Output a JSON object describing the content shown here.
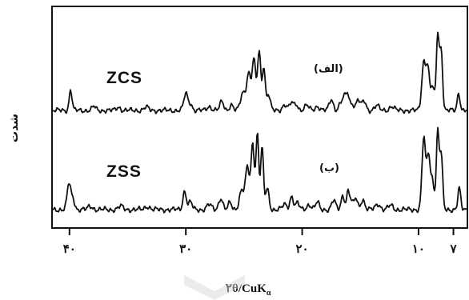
{
  "chart_data": {
    "type": "line",
    "x_reversed": true,
    "xlim": [
      41.5,
      5.8
    ],
    "x_ticks": [
      {
        "value": 40,
        "label": "۴۰"
      },
      {
        "value": 30,
        "label": "۳۰"
      },
      {
        "value": 20,
        "label": "۲۰"
      },
      {
        "value": 10,
        "label": "۱۰"
      },
      {
        "value": 7,
        "label": "۷"
      }
    ],
    "xlabel_main": "۲θ/CuK",
    "xlabel_sub": "α",
    "ylabel": "شدت",
    "series": [
      {
        "name": "ZCS",
        "tag": "(الف)",
        "baseline": 1.0,
        "peaks": [
          [
            39.9,
            2.6,
            0.12
          ],
          [
            37.9,
            0.5,
            0.15
          ],
          [
            35.8,
            0.4,
            0.18
          ],
          [
            33.4,
            0.4,
            0.2
          ],
          [
            30.0,
            2.1,
            0.17
          ],
          [
            29.6,
            0.8,
            0.15
          ],
          [
            28.0,
            0.5,
            0.2
          ],
          [
            26.9,
            1.1,
            0.17
          ],
          [
            26.1,
            0.7,
            0.15
          ],
          [
            25.1,
            2.2,
            0.2
          ],
          [
            24.6,
            4.6,
            0.18
          ],
          [
            24.15,
            6.2,
            0.15
          ],
          [
            23.7,
            7.4,
            0.14
          ],
          [
            23.3,
            5.5,
            0.12
          ],
          [
            22.9,
            2.0,
            0.15
          ],
          [
            21.5,
            0.7,
            0.2
          ],
          [
            20.9,
            1.0,
            0.15
          ],
          [
            20.5,
            0.8,
            0.15
          ],
          [
            19.6,
            0.6,
            0.2
          ],
          [
            18.7,
            0.5,
            0.2
          ],
          [
            17.5,
            1.4,
            0.17
          ],
          [
            16.7,
            0.8,
            0.17
          ],
          [
            16.4,
            1.4,
            0.14
          ],
          [
            16.1,
            2.1,
            0.14
          ],
          [
            15.7,
            0.9,
            0.15
          ],
          [
            15.2,
            1.4,
            0.15
          ],
          [
            14.7,
            1.2,
            0.17
          ],
          [
            13.6,
            0.6,
            0.2
          ],
          [
            12.3,
            0.5,
            0.2
          ],
          [
            9.55,
            6.0,
            0.17
          ],
          [
            9.2,
            5.0,
            0.14
          ],
          [
            8.8,
            3.0,
            0.15
          ],
          [
            8.35,
            9.6,
            0.12
          ],
          [
            8.05,
            7.5,
            0.12
          ],
          [
            6.55,
            2.2,
            0.12
          ]
        ]
      },
      {
        "name": "ZSS",
        "tag": "(ب)",
        "baseline": 1.0,
        "peaks": [
          [
            40.05,
            3.1,
            0.15
          ],
          [
            39.7,
            1.3,
            0.15
          ],
          [
            38.2,
            0.4,
            0.2
          ],
          [
            35.6,
            0.4,
            0.2
          ],
          [
            33.3,
            0.4,
            0.2
          ],
          [
            30.1,
            2.2,
            0.15
          ],
          [
            29.6,
            0.9,
            0.15
          ],
          [
            28.0,
            0.6,
            0.2
          ],
          [
            27.0,
            1.4,
            0.17
          ],
          [
            26.2,
            0.8,
            0.15
          ],
          [
            25.2,
            2.3,
            0.2
          ],
          [
            24.7,
            5.0,
            0.17
          ],
          [
            24.25,
            7.8,
            0.14
          ],
          [
            23.85,
            9.0,
            0.12
          ],
          [
            23.45,
            7.4,
            0.12
          ],
          [
            23.0,
            2.5,
            0.15
          ],
          [
            21.5,
            0.6,
            0.2
          ],
          [
            20.9,
            1.6,
            0.15
          ],
          [
            20.4,
            0.8,
            0.15
          ],
          [
            19.4,
            0.6,
            0.2
          ],
          [
            18.7,
            0.9,
            0.15
          ],
          [
            17.3,
            1.1,
            0.17
          ],
          [
            16.5,
            1.7,
            0.15
          ],
          [
            16.05,
            2.2,
            0.12
          ],
          [
            15.8,
            0.9,
            0.12
          ],
          [
            15.4,
            1.4,
            0.15
          ],
          [
            14.8,
            1.2,
            0.17
          ],
          [
            13.5,
            0.7,
            0.2
          ],
          [
            12.4,
            0.5,
            0.2
          ],
          [
            9.55,
            8.6,
            0.15
          ],
          [
            9.15,
            6.5,
            0.14
          ],
          [
            8.8,
            3.5,
            0.15
          ],
          [
            8.35,
            9.2,
            0.12
          ],
          [
            8.05,
            6.5,
            0.12
          ],
          [
            6.5,
            2.5,
            0.12
          ]
        ]
      }
    ],
    "grid": false,
    "legend": "none"
  }
}
